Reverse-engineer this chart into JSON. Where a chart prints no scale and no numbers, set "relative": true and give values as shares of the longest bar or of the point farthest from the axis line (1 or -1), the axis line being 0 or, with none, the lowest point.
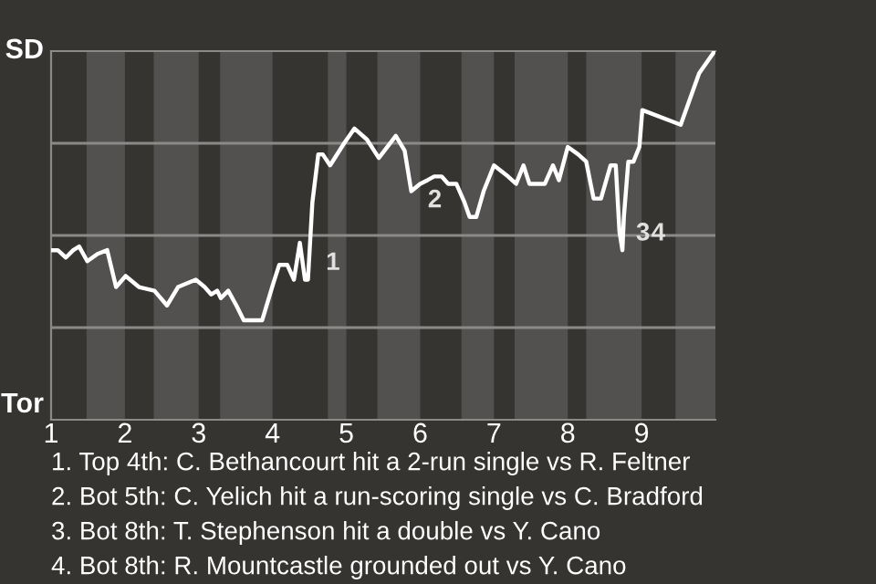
{
  "chart_data": {
    "type": "line",
    "relative": true,
    "x": [
      1.01,
      1.09,
      1.2,
      1.3,
      1.38,
      1.49,
      1.63,
      1.76,
      1.88,
      2.01,
      2.19,
      2.4,
      2.57,
      2.72,
      2.96,
      3.08,
      3.17,
      3.25,
      3.3,
      3.4,
      3.51,
      3.61,
      3.86,
      4.01,
      4.09,
      4.2,
      4.29,
      4.37,
      4.44,
      4.48,
      4.54,
      4.62,
      4.68,
      4.78,
      4.97,
      5.11,
      5.28,
      5.44,
      5.67,
      5.79,
      5.88,
      6.0,
      6.1,
      6.19,
      6.29,
      6.38,
      6.49,
      6.6,
      6.67,
      6.76,
      6.86,
      7.0,
      7.19,
      7.3,
      7.4,
      7.48,
      7.69,
      7.8,
      7.88,
      8.0,
      8.14,
      8.25,
      8.35,
      8.45,
      8.58,
      8.65,
      8.7,
      8.74,
      8.76,
      8.82,
      8.89,
      8.97,
      9.01,
      9.53,
      9.78,
      9.99
    ],
    "series": [
      {
        "color": "#ffffff",
        "values": [
          0.46,
          0.46,
          0.44,
          0.46,
          0.47,
          0.43,
          0.45,
          0.46,
          0.36,
          0.39,
          0.36,
          0.35,
          0.31,
          0.36,
          0.38,
          0.36,
          0.34,
          0.35,
          0.33,
          0.35,
          0.31,
          0.27,
          0.27,
          0.37,
          0.42,
          0.42,
          0.38,
          0.48,
          0.38,
          0.38,
          0.59,
          0.72,
          0.72,
          0.69,
          0.75,
          0.79,
          0.76,
          0.71,
          0.77,
          0.73,
          0.62,
          0.64,
          0.65,
          0.66,
          0.66,
          0.64,
          0.64,
          0.59,
          0.55,
          0.55,
          0.62,
          0.69,
          0.66,
          0.64,
          0.69,
          0.64,
          0.64,
          0.69,
          0.65,
          0.74,
          0.72,
          0.7,
          0.6,
          0.6,
          0.69,
          0.69,
          0.51,
          0.46,
          0.55,
          0.7,
          0.7,
          0.74,
          0.84,
          0.8,
          0.94,
          1.0
        ]
      }
    ],
    "xlim": [
      1,
      10
    ],
    "xticks": [
      1,
      2,
      3,
      4,
      5,
      6,
      7,
      8,
      9
    ],
    "grid": "y",
    "bands": [
      {
        "axis": "x",
        "from": 1.48,
        "to": 2,
        "color": "#52514f"
      },
      {
        "axis": "x",
        "from": 2.39,
        "to": 3,
        "color": "#52514f"
      },
      {
        "axis": "x",
        "from": 3.29,
        "to": 4,
        "color": "#52514f"
      },
      {
        "axis": "x",
        "from": 4.75,
        "to": 5,
        "color": "#52514f"
      },
      {
        "axis": "x",
        "from": 5.42,
        "to": 6,
        "color": "#52514f"
      },
      {
        "axis": "x",
        "from": 6.56,
        "to": 7,
        "color": "#52514f"
      },
      {
        "axis": "x",
        "from": 7.28,
        "to": 8,
        "color": "#52514f"
      },
      {
        "axis": "x",
        "from": 8.25,
        "to": 9,
        "color": "#52514f"
      },
      {
        "axis": "x",
        "from": 9.46,
        "to": 10,
        "color": "#52514f"
      }
    ],
    "annotations": [
      "SD",
      "Tor",
      {
        "text": "1",
        "x": 4.62,
        "y": 0.47
      },
      {
        "text": "2",
        "x": 6.0,
        "y": 0.64
      },
      {
        "text": "3",
        "x": 8.82,
        "y": 0.55
      },
      {
        "text": "4",
        "x": 8.89,
        "y": 0.55
      },
      "1. Top 4th: C. Bethancourt hit a 2-run single vs R. Feltner",
      "2. Bot 5th: C. Yelich hit a run-scoring single vs C. Bradford",
      "3. Bot 8th: T. Stephenson hit a double vs Y. Cano",
      "4. Bot 8th: R. Mountcastle grounded out vs Y. Cano"
    ],
    "marker": "none",
    "line_style": "solid"
  }
}
